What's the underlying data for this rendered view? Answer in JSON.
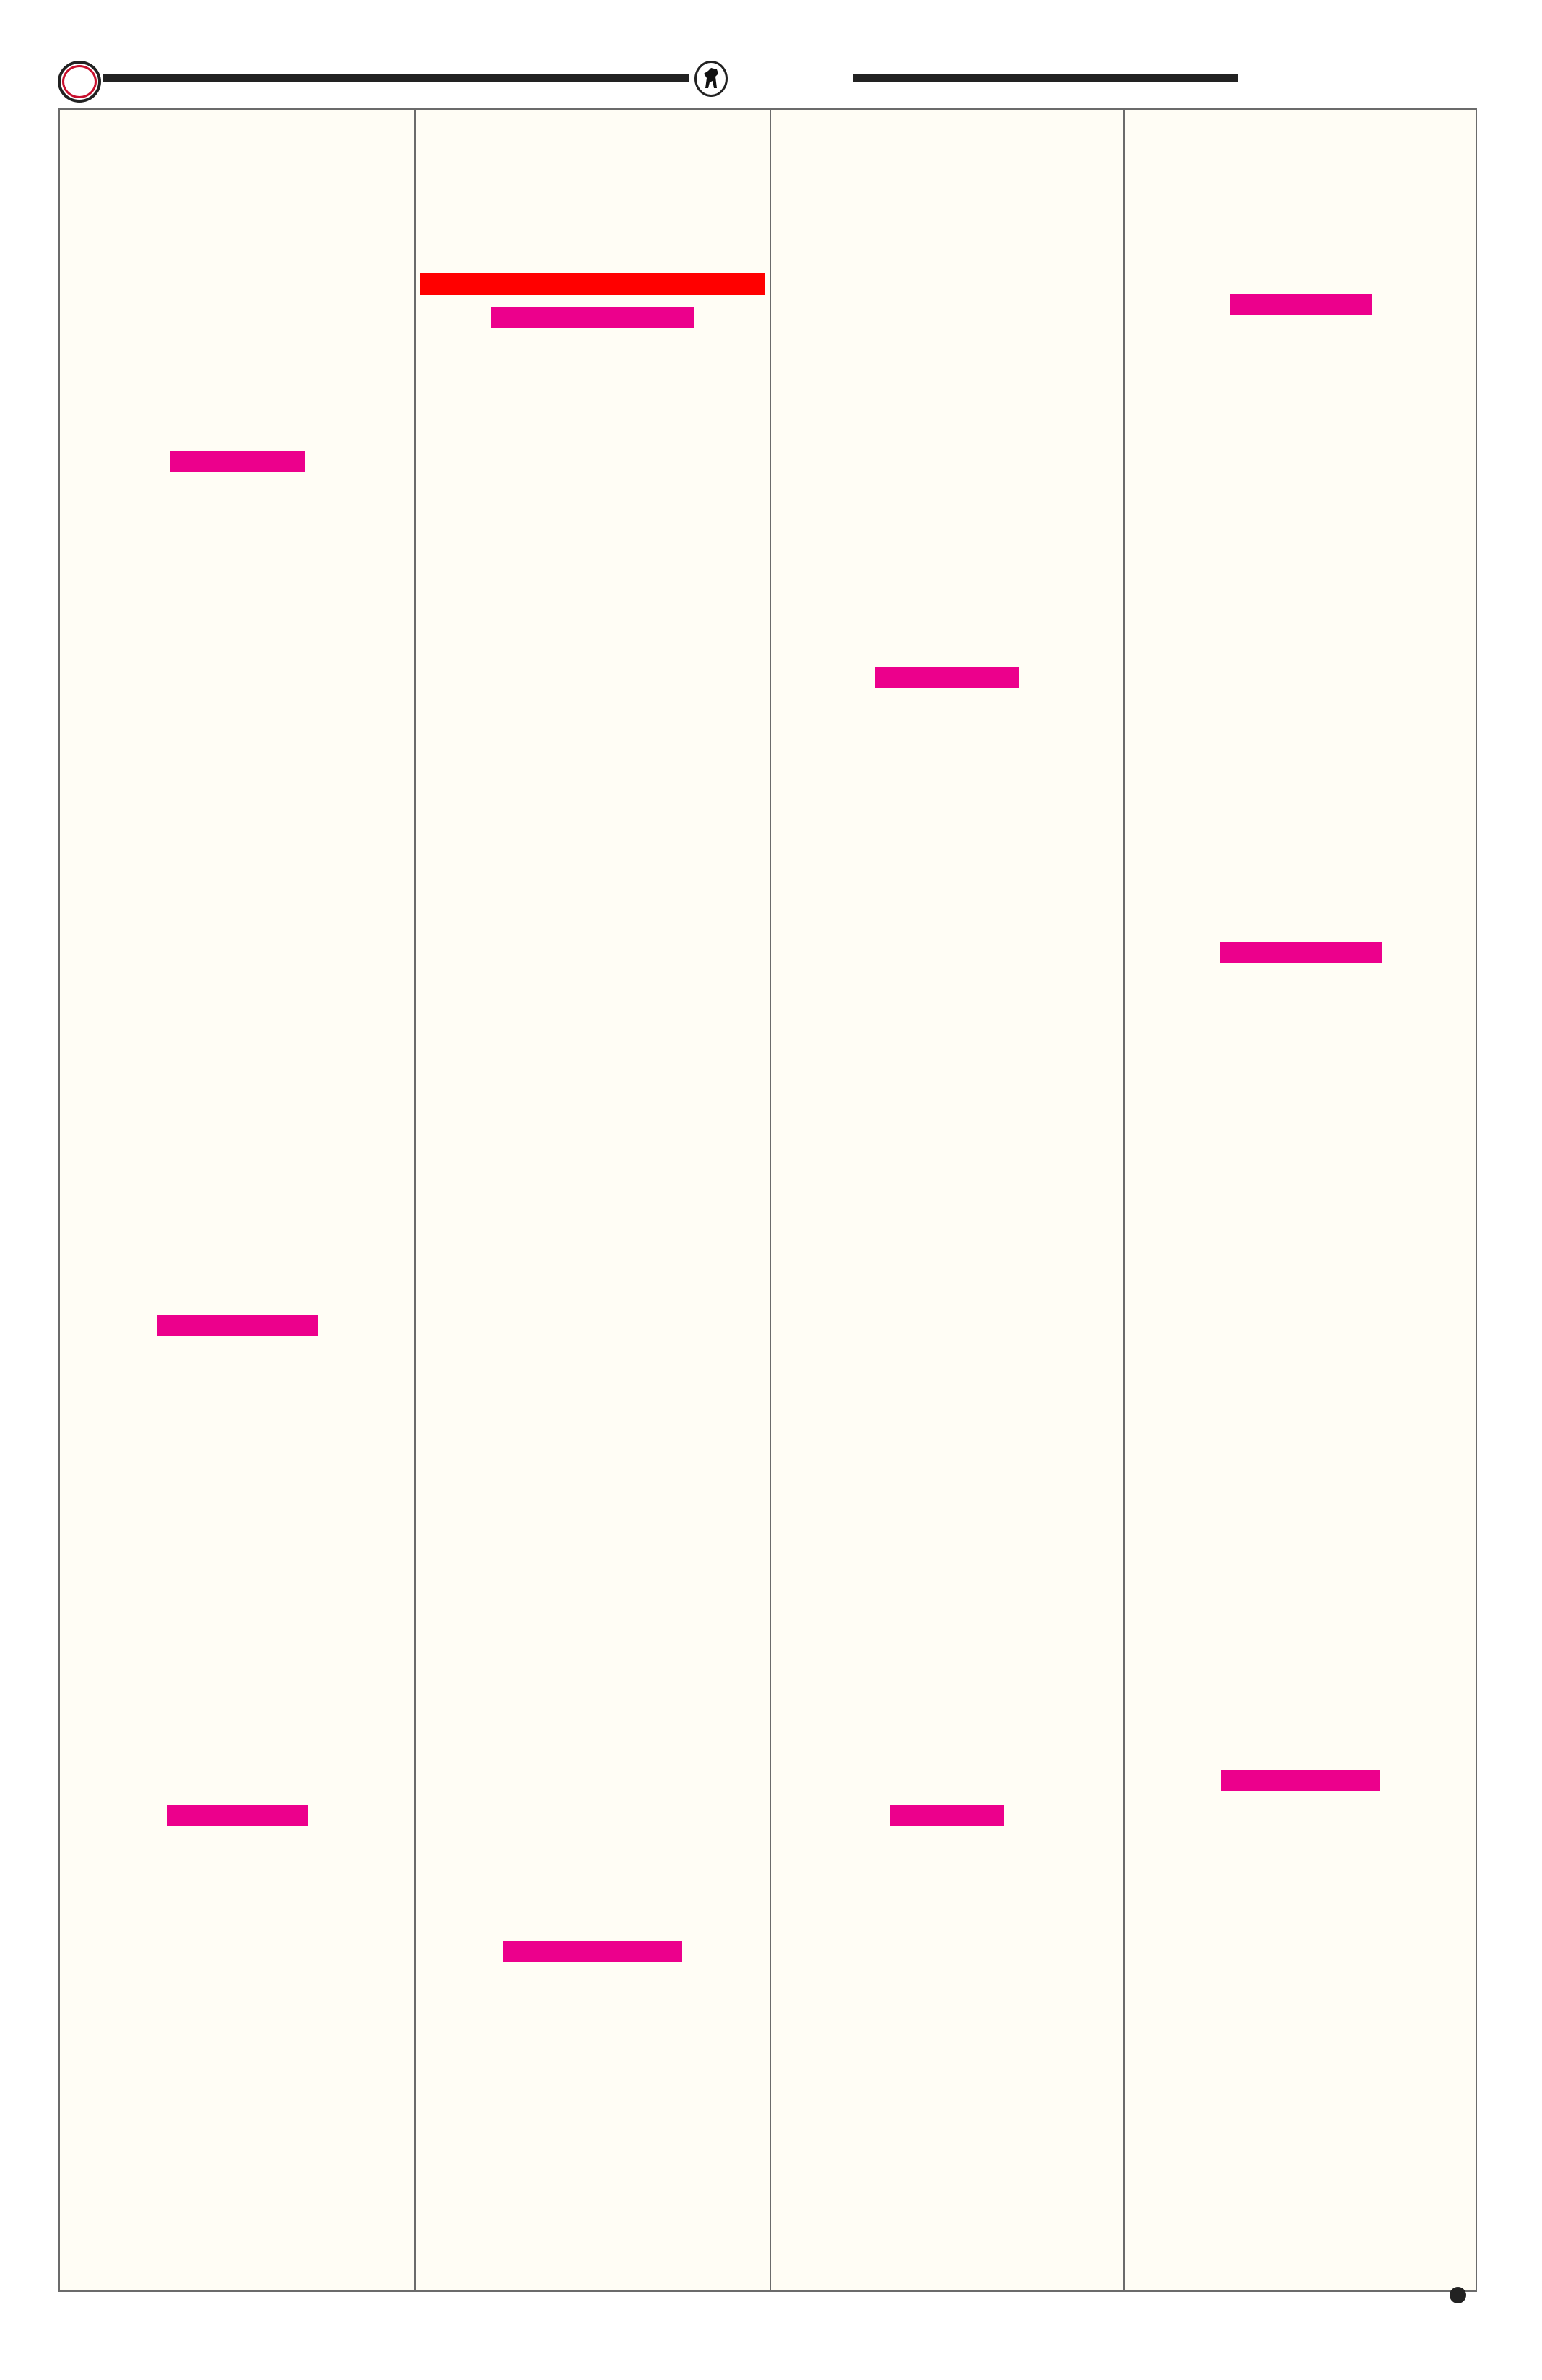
{
  "colors": {
    "page_background": "#fffdf5",
    "frame_border": "#6b6b6b",
    "highlight_red": "#ff0000",
    "highlight_magenta": "#ec008c",
    "ornament_ring": "#c8102e"
  },
  "header": {
    "left_ornament_icon": "red-ring-icon",
    "center_emblem_icon": "animal-emblem-icon"
  },
  "columns": 4,
  "redaction_blocks": [
    {
      "column": 2,
      "color": "red"
    },
    {
      "column": 2,
      "color": "magenta"
    },
    {
      "column": 1,
      "color": "magenta"
    },
    {
      "column": 4,
      "color": "magenta"
    },
    {
      "column": 3,
      "color": "magenta"
    },
    {
      "column": 4,
      "color": "magenta"
    },
    {
      "column": 1,
      "color": "magenta"
    },
    {
      "column": 1,
      "color": "magenta"
    },
    {
      "column": 3,
      "color": "magenta"
    },
    {
      "column": 4,
      "color": "magenta"
    },
    {
      "column": 2,
      "color": "magenta"
    }
  ],
  "footer": {
    "page_marker_icon": "bullet-dot-icon"
  }
}
